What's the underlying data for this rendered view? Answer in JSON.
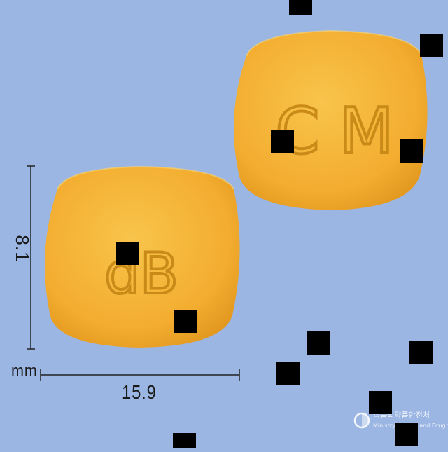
{
  "tablets": [
    {
      "imprint": "dB",
      "color": "#f5b535"
    },
    {
      "imprint": "C M",
      "color": "#f5b535"
    }
  ],
  "dimensions": {
    "height_value": "8.1",
    "width_value": "15.9",
    "unit": "mm"
  },
  "watermark": {
    "korean": "식품의약품안전처",
    "english": "Ministry of Food and Drug Safety"
  },
  "colors": {
    "background": "#9bb6e3",
    "tablet": "#f5b535",
    "tablet_shadow": "#e39a1d",
    "imprint": "#c98a18"
  }
}
